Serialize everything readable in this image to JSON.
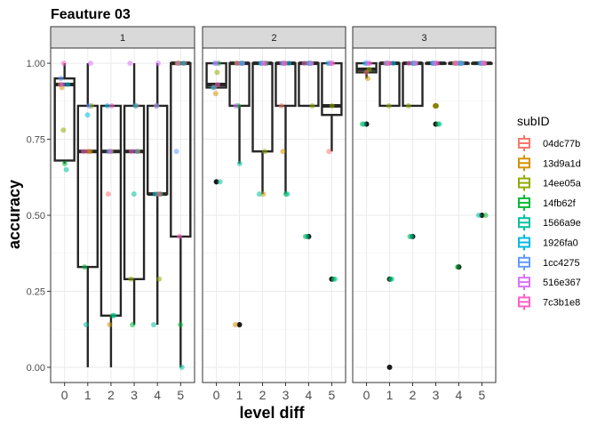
{
  "chart_data": {
    "type": "boxplot",
    "title": "Feauture 03",
    "xlabel": "level diff",
    "ylabel": "accuracy",
    "ylim": [
      -0.05,
      1.05
    ],
    "xlim": [
      -0.6,
      5.6
    ],
    "x_ticks": [
      "0",
      "1",
      "2",
      "3",
      "4",
      "5"
    ],
    "y_ticks": [
      "0.00",
      "0.25",
      "0.50",
      "0.75",
      "1.00"
    ],
    "y_tick_values": [
      0,
      0.25,
      0.5,
      0.75,
      1.0
    ],
    "legend": {
      "title": "subID",
      "position": "right",
      "entries": [
        {
          "label": "04dc77b",
          "color": "#F8766D"
        },
        {
          "label": "13d9a1d",
          "color": "#D39200"
        },
        {
          "label": "14ee05a",
          "color": "#93AA00"
        },
        {
          "label": "14fb62f",
          "color": "#00BA38"
        },
        {
          "label": "1566a9e",
          "color": "#00C19F"
        },
        {
          "label": "1926fa0",
          "color": "#00B9E3"
        },
        {
          "label": "1cc4275",
          "color": "#619CFF"
        },
        {
          "label": "516e367",
          "color": "#DB72FB"
        },
        {
          "label": "7c3b1e8",
          "color": "#FF61C3"
        }
      ]
    },
    "facets": [
      {
        "label": "1",
        "boxes": [
          {
            "x": 0,
            "ymin": 0.67,
            "q1": 0.68,
            "median": 0.93,
            "q3": 0.95,
            "ymax": 1.0
          },
          {
            "x": 1,
            "ymin": 0.0,
            "q1": 0.33,
            "median": 0.71,
            "q3": 0.86,
            "ymax": 1.0
          },
          {
            "x": 2,
            "ymin": 0.0,
            "q1": 0.17,
            "median": 0.71,
            "q3": 0.86,
            "ymax": 0.86
          },
          {
            "x": 3,
            "ymin": 0.14,
            "q1": 0.29,
            "median": 0.71,
            "q3": 0.86,
            "ymax": 1.0
          },
          {
            "x": 4,
            "ymin": 0.14,
            "q1": 0.57,
            "median": 0.57,
            "q3": 0.86,
            "ymax": 1.0
          },
          {
            "x": 5,
            "ymin": 0.0,
            "q1": 0.43,
            "median": 1.0,
            "q3": 1.0,
            "ymax": 1.0
          }
        ],
        "outliers": [],
        "points": [
          {
            "x": 0,
            "y": 0.93,
            "c": 0
          },
          {
            "x": 0,
            "y": 0.92,
            "c": 1
          },
          {
            "x": 0,
            "y": 0.78,
            "c": 2
          },
          {
            "x": 0,
            "y": 0.67,
            "c": 3
          },
          {
            "x": 0,
            "y": 0.65,
            "c": 4
          },
          {
            "x": 0,
            "y": 0.93,
            "c": 5
          },
          {
            "x": 0,
            "y": 0.95,
            "c": 6
          },
          {
            "x": 0,
            "y": 0.93,
            "c": 7
          },
          {
            "x": 0,
            "y": 1.0,
            "c": 8
          },
          {
            "x": 1,
            "y": 0.71,
            "c": 0
          },
          {
            "x": 1,
            "y": 0.71,
            "c": 1
          },
          {
            "x": 1,
            "y": 0.86,
            "c": 2
          },
          {
            "x": 1,
            "y": 0.33,
            "c": 3
          },
          {
            "x": 1,
            "y": 0.14,
            "c": 4
          },
          {
            "x": 1,
            "y": 0.83,
            "c": 5
          },
          {
            "x": 1,
            "y": 0.86,
            "c": 6
          },
          {
            "x": 1,
            "y": 1.0,
            "c": 7
          },
          {
            "x": 1,
            "y": 0.71,
            "c": 8
          },
          {
            "x": 2,
            "y": 0.57,
            "c": 0
          },
          {
            "x": 2,
            "y": 0.14,
            "c": 1
          },
          {
            "x": 2,
            "y": 0.71,
            "c": 2
          },
          {
            "x": 2,
            "y": 0.17,
            "c": 3
          },
          {
            "x": 2,
            "y": 0.17,
            "c": 4
          },
          {
            "x": 2,
            "y": 0.86,
            "c": 5
          },
          {
            "x": 2,
            "y": 0.71,
            "c": 6
          },
          {
            "x": 2,
            "y": 0.71,
            "c": 7
          },
          {
            "x": 2,
            "y": 0.86,
            "c": 8
          },
          {
            "x": 3,
            "y": 0.86,
            "c": 0
          },
          {
            "x": 3,
            "y": 0.71,
            "c": 1
          },
          {
            "x": 3,
            "y": 0.29,
            "c": 2
          },
          {
            "x": 3,
            "y": 0.14,
            "c": 3
          },
          {
            "x": 3,
            "y": 0.57,
            "c": 4
          },
          {
            "x": 3,
            "y": 0.86,
            "c": 5
          },
          {
            "x": 3,
            "y": 0.71,
            "c": 6
          },
          {
            "x": 3,
            "y": 1.0,
            "c": 7
          },
          {
            "x": 3,
            "y": 0.71,
            "c": 8
          },
          {
            "x": 4,
            "y": 0.86,
            "c": 0
          },
          {
            "x": 4,
            "y": 0.57,
            "c": 1
          },
          {
            "x": 4,
            "y": 0.29,
            "c": 2
          },
          {
            "x": 4,
            "y": 0.57,
            "c": 3
          },
          {
            "x": 4,
            "y": 0.14,
            "c": 4
          },
          {
            "x": 4,
            "y": 0.57,
            "c": 5
          },
          {
            "x": 4,
            "y": 0.86,
            "c": 6
          },
          {
            "x": 4,
            "y": 1.0,
            "c": 7
          },
          {
            "x": 4,
            "y": 0.57,
            "c": 8
          },
          {
            "x": 5,
            "y": 1.0,
            "c": 0
          },
          {
            "x": 5,
            "y": 1.0,
            "c": 1
          },
          {
            "x": 5,
            "y": 1.0,
            "c": 2
          },
          {
            "x": 5,
            "y": 0.14,
            "c": 3
          },
          {
            "x": 5,
            "y": 0.0,
            "c": 4
          },
          {
            "x": 5,
            "y": 1.0,
            "c": 5
          },
          {
            "x": 5,
            "y": 0.71,
            "c": 6
          },
          {
            "x": 5,
            "y": 1.0,
            "c": 7
          },
          {
            "x": 5,
            "y": 0.43,
            "c": 8
          }
        ]
      },
      {
        "label": "2",
        "boxes": [
          {
            "x": 0,
            "ymin": 0.92,
            "q1": 0.92,
            "median": 0.93,
            "q3": 1.0,
            "ymax": 1.0
          },
          {
            "x": 1,
            "ymin": 0.67,
            "q1": 0.86,
            "median": 1.0,
            "q3": 1.0,
            "ymax": 1.0
          },
          {
            "x": 2,
            "ymin": 0.57,
            "q1": 0.71,
            "median": 1.0,
            "q3": 1.0,
            "ymax": 1.0
          },
          {
            "x": 3,
            "ymin": 0.57,
            "q1": 0.86,
            "median": 1.0,
            "q3": 1.0,
            "ymax": 1.0
          },
          {
            "x": 4,
            "ymin": 0.86,
            "q1": 0.86,
            "median": 1.0,
            "q3": 1.0,
            "ymax": 1.0
          },
          {
            "x": 5,
            "ymin": 0.71,
            "q1": 0.83,
            "median": 0.86,
            "q3": 1.0,
            "ymax": 1.0
          }
        ],
        "outliers": [
          {
            "x": 0,
            "y": 0.61
          },
          {
            "x": 1,
            "y": 0.14
          },
          {
            "x": 4,
            "y": 0.43
          },
          {
            "x": 5,
            "y": 0.29
          }
        ],
        "points": [
          {
            "x": 0,
            "y": 0.92,
            "c": 0
          },
          {
            "x": 0,
            "y": 0.9,
            "c": 1
          },
          {
            "x": 0,
            "y": 0.97,
            "c": 2
          },
          {
            "x": 0,
            "y": 1.0,
            "c": 3
          },
          {
            "x": 0,
            "y": 0.61,
            "c": 4
          },
          {
            "x": 0,
            "y": 0.92,
            "c": 5
          },
          {
            "x": 0,
            "y": 1.0,
            "c": 6
          },
          {
            "x": 0,
            "y": 1.0,
            "c": 7
          },
          {
            "x": 0,
            "y": 0.93,
            "c": 8
          },
          {
            "x": 1,
            "y": 1.0,
            "c": 0
          },
          {
            "x": 1,
            "y": 0.14,
            "c": 1
          },
          {
            "x": 1,
            "y": 1.0,
            "c": 2
          },
          {
            "x": 1,
            "y": 0.86,
            "c": 3
          },
          {
            "x": 1,
            "y": 0.67,
            "c": 4
          },
          {
            "x": 1,
            "y": 1.0,
            "c": 5
          },
          {
            "x": 1,
            "y": 1.0,
            "c": 6
          },
          {
            "x": 1,
            "y": 0.86,
            "c": 7
          },
          {
            "x": 1,
            "y": 1.0,
            "c": 8
          },
          {
            "x": 2,
            "y": 1.0,
            "c": 0
          },
          {
            "x": 2,
            "y": 0.57,
            "c": 1
          },
          {
            "x": 2,
            "y": 0.71,
            "c": 2
          },
          {
            "x": 2,
            "y": 1.0,
            "c": 3
          },
          {
            "x": 2,
            "y": 0.57,
            "c": 4
          },
          {
            "x": 2,
            "y": 1.0,
            "c": 5
          },
          {
            "x": 2,
            "y": 1.0,
            "c": 6
          },
          {
            "x": 2,
            "y": 1.0,
            "c": 7
          },
          {
            "x": 2,
            "y": 1.0,
            "c": 8
          },
          {
            "x": 3,
            "y": 0.86,
            "c": 0
          },
          {
            "x": 3,
            "y": 0.71,
            "c": 1
          },
          {
            "x": 3,
            "y": 1.0,
            "c": 2
          },
          {
            "x": 3,
            "y": 0.57,
            "c": 3
          },
          {
            "x": 3,
            "y": 0.57,
            "c": 4
          },
          {
            "x": 3,
            "y": 1.0,
            "c": 5
          },
          {
            "x": 3,
            "y": 1.0,
            "c": 6
          },
          {
            "x": 3,
            "y": 1.0,
            "c": 7
          },
          {
            "x": 3,
            "y": 1.0,
            "c": 8
          },
          {
            "x": 4,
            "y": 1.0,
            "c": 0
          },
          {
            "x": 4,
            "y": 1.0,
            "c": 1
          },
          {
            "x": 4,
            "y": 0.86,
            "c": 2
          },
          {
            "x": 4,
            "y": 0.43,
            "c": 3
          },
          {
            "x": 4,
            "y": 0.43,
            "c": 4
          },
          {
            "x": 4,
            "y": 1.0,
            "c": 5
          },
          {
            "x": 4,
            "y": 1.0,
            "c": 6
          },
          {
            "x": 4,
            "y": 1.0,
            "c": 7
          },
          {
            "x": 4,
            "y": 1.0,
            "c": 8
          },
          {
            "x": 5,
            "y": 0.71,
            "c": 0
          },
          {
            "x": 5,
            "y": 1.0,
            "c": 1
          },
          {
            "x": 5,
            "y": 0.86,
            "c": 2
          },
          {
            "x": 5,
            "y": 0.29,
            "c": 3
          },
          {
            "x": 5,
            "y": 0.29,
            "c": 4
          },
          {
            "x": 5,
            "y": 1.0,
            "c": 5
          },
          {
            "x": 5,
            "y": 1.0,
            "c": 6
          },
          {
            "x": 5,
            "y": 1.0,
            "c": 7
          },
          {
            "x": 5,
            "y": 1.0,
            "c": 8
          }
        ]
      },
      {
        "label": "3",
        "boxes": [
          {
            "x": 0,
            "ymin": 0.95,
            "q1": 0.97,
            "median": 0.98,
            "q3": 1.0,
            "ymax": 1.0
          },
          {
            "x": 1,
            "ymin": 0.86,
            "q1": 0.86,
            "median": 1.0,
            "q3": 1.0,
            "ymax": 1.0
          },
          {
            "x": 2,
            "ymin": 0.86,
            "q1": 0.86,
            "median": 1.0,
            "q3": 1.0,
            "ymax": 1.0
          },
          {
            "x": 3,
            "ymin": 1.0,
            "q1": 1.0,
            "median": 1.0,
            "q3": 1.0,
            "ymax": 1.0
          },
          {
            "x": 4,
            "ymin": 1.0,
            "q1": 1.0,
            "median": 1.0,
            "q3": 1.0,
            "ymax": 1.0
          },
          {
            "x": 5,
            "ymin": 1.0,
            "q1": 1.0,
            "median": 1.0,
            "q3": 1.0,
            "ymax": 1.0
          }
        ],
        "outliers": [
          {
            "x": 0,
            "y": 0.8
          },
          {
            "x": 1,
            "y": 0.29
          },
          {
            "x": 1,
            "y": 0.0
          },
          {
            "x": 2,
            "y": 0.43
          },
          {
            "x": 3,
            "y": 0.86
          },
          {
            "x": 3,
            "y": 0.8
          },
          {
            "x": 4,
            "y": 0.33
          },
          {
            "x": 5,
            "y": 0.5
          }
        ],
        "points": [
          {
            "x": 0,
            "y": 0.97,
            "c": 0
          },
          {
            "x": 0,
            "y": 0.95,
            "c": 1
          },
          {
            "x": 0,
            "y": 0.98,
            "c": 2
          },
          {
            "x": 0,
            "y": 0.8,
            "c": 3
          },
          {
            "x": 0,
            "y": 0.8,
            "c": 4
          },
          {
            "x": 0,
            "y": 1.0,
            "c": 5
          },
          {
            "x": 0,
            "y": 1.0,
            "c": 6
          },
          {
            "x": 0,
            "y": 1.0,
            "c": 7
          },
          {
            "x": 0,
            "y": 1.0,
            "c": 8
          },
          {
            "x": 1,
            "y": 1.0,
            "c": 0
          },
          {
            "x": 1,
            "y": 1.0,
            "c": 1
          },
          {
            "x": 1,
            "y": 0.86,
            "c": 2
          },
          {
            "x": 1,
            "y": 0.29,
            "c": 3
          },
          {
            "x": 1,
            "y": 0.29,
            "c": 4
          },
          {
            "x": 1,
            "y": 1.0,
            "c": 5
          },
          {
            "x": 1,
            "y": 1.0,
            "c": 6
          },
          {
            "x": 1,
            "y": 1.0,
            "c": 7
          },
          {
            "x": 1,
            "y": 1.0,
            "c": 8
          },
          {
            "x": 2,
            "y": 1.0,
            "c": 0
          },
          {
            "x": 2,
            "y": 1.0,
            "c": 1
          },
          {
            "x": 2,
            "y": 0.86,
            "c": 2
          },
          {
            "x": 2,
            "y": 0.43,
            "c": 3
          },
          {
            "x": 2,
            "y": 0.43,
            "c": 4
          },
          {
            "x": 2,
            "y": 1.0,
            "c": 5
          },
          {
            "x": 2,
            "y": 1.0,
            "c": 6
          },
          {
            "x": 2,
            "y": 1.0,
            "c": 7
          },
          {
            "x": 2,
            "y": 1.0,
            "c": 8
          },
          {
            "x": 3,
            "y": 1.0,
            "c": 0
          },
          {
            "x": 3,
            "y": 0.86,
            "c": 1
          },
          {
            "x": 3,
            "y": 0.86,
            "c": 2
          },
          {
            "x": 3,
            "y": 0.8,
            "c": 3
          },
          {
            "x": 3,
            "y": 0.8,
            "c": 4
          },
          {
            "x": 3,
            "y": 1.0,
            "c": 5
          },
          {
            "x": 3,
            "y": 1.0,
            "c": 6
          },
          {
            "x": 3,
            "y": 1.0,
            "c": 7
          },
          {
            "x": 3,
            "y": 1.0,
            "c": 8
          },
          {
            "x": 4,
            "y": 1.0,
            "c": 0
          },
          {
            "x": 4,
            "y": 1.0,
            "c": 1
          },
          {
            "x": 4,
            "y": 1.0,
            "c": 2
          },
          {
            "x": 4,
            "y": 0.33,
            "c": 3
          },
          {
            "x": 4,
            "y": 1.0,
            "c": 4
          },
          {
            "x": 4,
            "y": 1.0,
            "c": 5
          },
          {
            "x": 4,
            "y": 1.0,
            "c": 6
          },
          {
            "x": 4,
            "y": 1.0,
            "c": 7
          },
          {
            "x": 4,
            "y": 1.0,
            "c": 8
          },
          {
            "x": 5,
            "y": 1.0,
            "c": 0
          },
          {
            "x": 5,
            "y": 1.0,
            "c": 1
          },
          {
            "x": 5,
            "y": 1.0,
            "c": 2
          },
          {
            "x": 5,
            "y": 0.5,
            "c": 3
          },
          {
            "x": 5,
            "y": 0.5,
            "c": 4
          },
          {
            "x": 5,
            "y": 1.0,
            "c": 5
          },
          {
            "x": 5,
            "y": 1.0,
            "c": 6
          },
          {
            "x": 5,
            "y": 1.0,
            "c": 7
          },
          {
            "x": 5,
            "y": 1.0,
            "c": 8
          }
        ]
      }
    ]
  }
}
